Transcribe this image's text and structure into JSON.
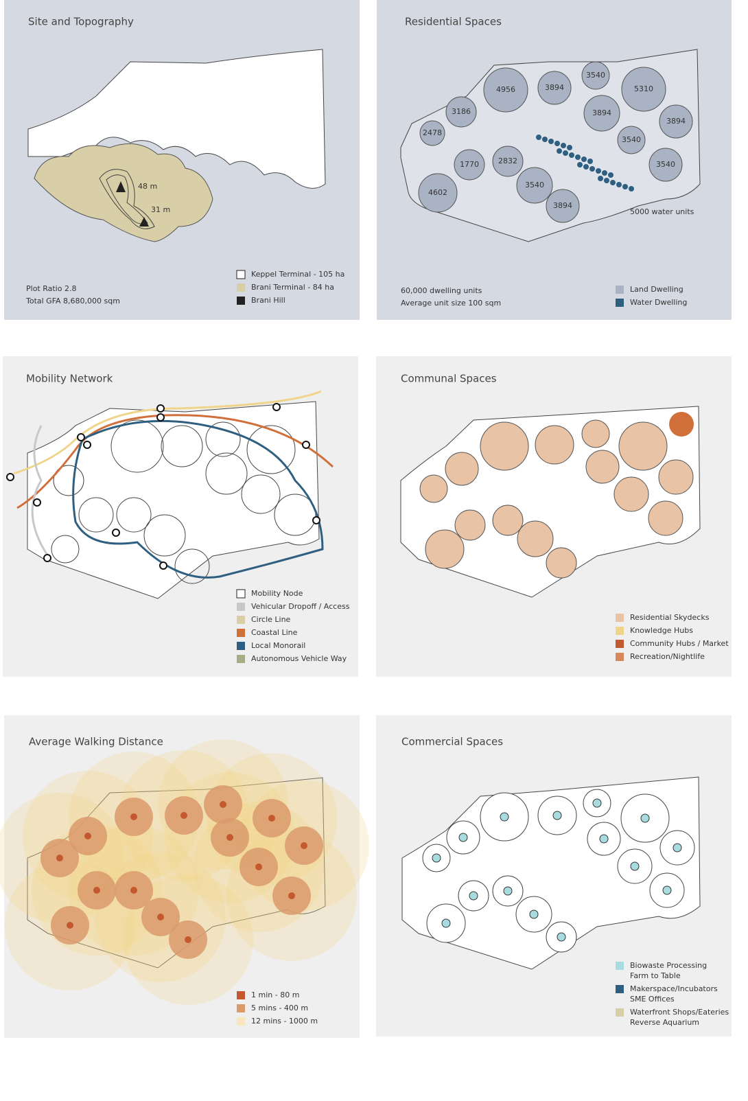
{
  "panels": [
    {
      "title": "Site and Topography",
      "notes": [
        "Plot Ratio 2.8",
        "Total GFA 8,680,000 sqm"
      ],
      "labels": [
        "48 m",
        "31 m"
      ],
      "legend": [
        [
          "Keppel Terminal - 105 ha"
        ],
        [
          "Brani Terminal - 84 ha"
        ],
        [
          "Brani Hill"
        ]
      ]
    },
    {
      "title": "Residential Spaces",
      "notes": [
        "60,000 dwelling units",
        "Average unit size 100 sqm"
      ],
      "labels": [
        "4956",
        "3894",
        "3540",
        "5310",
        "3186",
        "3894",
        "3894",
        "2478",
        "3540",
        "1770",
        "2832",
        "3540",
        "4602",
        "3540",
        "3894",
        "5000 water units"
      ],
      "legend": [
        [
          "Land Dwelling"
        ],
        [
          "Water Dwelling"
        ]
      ]
    },
    {
      "title": "Mobility Network",
      "notes": [],
      "labels": [],
      "legend": [
        [
          "Mobility Node"
        ],
        [
          "Vehicular Dropoff / Access"
        ],
        [
          "Circle Line"
        ],
        [
          "Coastal Line"
        ],
        [
          "Local Monorail"
        ],
        [
          "Autonomous Vehicle Way"
        ]
      ]
    },
    {
      "title": "Communal Spaces",
      "notes": [],
      "labels": [],
      "legend": [
        [
          "Residential Skydecks"
        ],
        [
          "Knowledge Hubs"
        ],
        [
          "Community Hubs / Market"
        ],
        [
          "Recreation/Nightlife"
        ]
      ]
    },
    {
      "title": "Average Walking Distance",
      "notes": [],
      "labels": [],
      "legend": [
        [
          "1 min - 80 m"
        ],
        [
          "5 mins - 400 m"
        ],
        [
          "12 mins - 1000 m"
        ]
      ]
    },
    {
      "title": "Commercial Spaces",
      "notes": [],
      "labels": [],
      "legend": [
        [
          "Biowaste Processing",
          "Farm to Table"
        ],
        [
          "Makerspace/Incubators",
          "SME Offices"
        ],
        [
          "Waterfront Shops/Eateries",
          "Reverse Aquarium"
        ]
      ]
    }
  ]
}
